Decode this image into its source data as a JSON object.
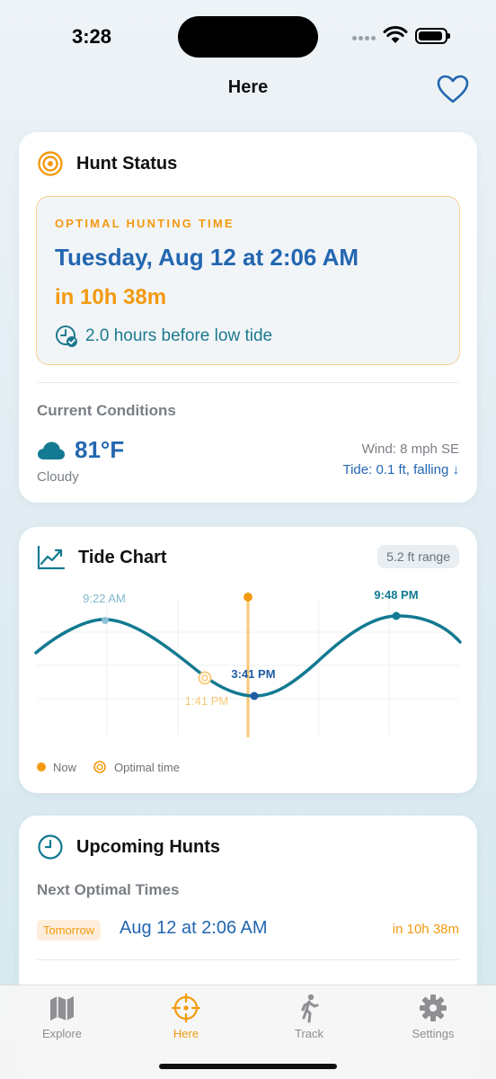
{
  "status_bar": {
    "time": "3:28"
  },
  "nav": {
    "title": "Here"
  },
  "hunt_status": {
    "title": "Hunt Status",
    "optimal_label": "OPTIMAL HUNTING TIME",
    "optimal_date": "Tuesday, Aug 12 at 2:06 AM",
    "optimal_in": "in 10h 38m",
    "tide_relation": "2.0 hours before low tide",
    "current_label": "Current Conditions",
    "temperature": "81°F",
    "condition": "Cloudy",
    "wind": "Wind: 8 mph SE",
    "tide": "Tide: 0.1 ft, falling ↓"
  },
  "tide_chart": {
    "title": "Tide Chart",
    "range": "5.2 ft range",
    "labels": {
      "high1": "9:22 AM",
      "low": "3:41 PM",
      "optimal": "1:41 PM",
      "high2": "9:48 PM"
    },
    "legend": {
      "now": "Now",
      "optimal": "Optimal time"
    }
  },
  "upcoming": {
    "title": "Upcoming Hunts",
    "subtitle": "Next Optimal Times",
    "rows": [
      {
        "badge": "Tomorrow",
        "date": "Aug 12 at 2:06 AM",
        "in": "in 10h 38m"
      }
    ]
  },
  "tabs": [
    {
      "label": "Explore",
      "icon": "map-icon"
    },
    {
      "label": "Here",
      "icon": "crosshair-icon"
    },
    {
      "label": "Track",
      "icon": "walking-icon"
    },
    {
      "label": "Settings",
      "icon": "gear-icon"
    }
  ],
  "colors": {
    "accent": "#f39a10",
    "blue": "#2366b0",
    "teal": "#127a91"
  }
}
